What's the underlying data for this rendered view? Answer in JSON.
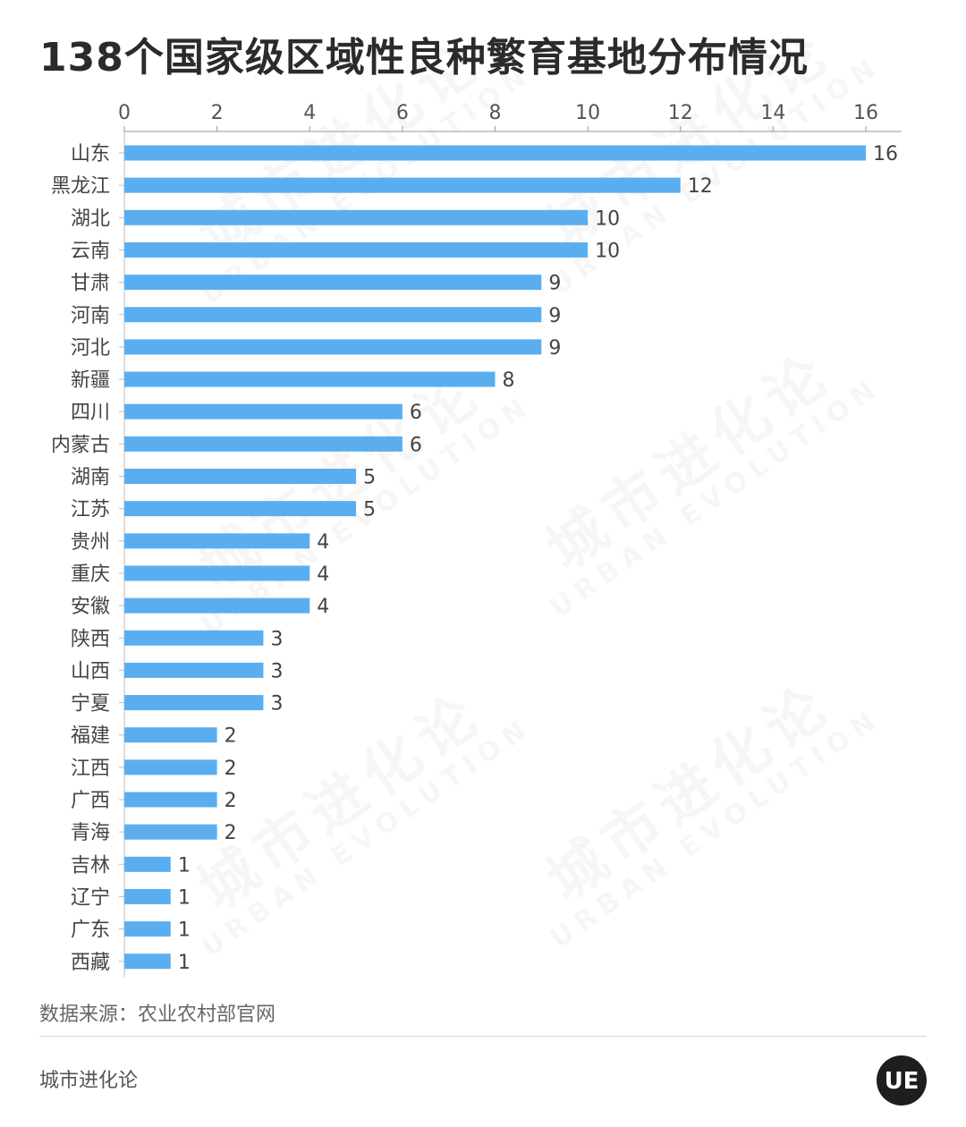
{
  "header": {
    "title": "138个国家级区域性良种繁育基地分布情况"
  },
  "chart_data": {
    "type": "bar",
    "orientation": "horizontal",
    "title": "138个国家级区域性良种繁育基地分布情况",
    "categories": [
      "山东",
      "黑龙江",
      "湖北",
      "云南",
      "甘肃",
      "河南",
      "河北",
      "新疆",
      "四川",
      "内蒙古",
      "湖南",
      "江苏",
      "贵州",
      "重庆",
      "安徽",
      "陕西",
      "山西",
      "宁夏",
      "福建",
      "江西",
      "广西",
      "青海",
      "吉林",
      "辽宁",
      "广东",
      "西藏"
    ],
    "values": [
      16,
      12,
      10,
      10,
      9,
      9,
      9,
      8,
      6,
      6,
      5,
      5,
      4,
      4,
      4,
      3,
      3,
      3,
      2,
      2,
      2,
      2,
      1,
      1,
      1,
      1
    ],
    "xlim": [
      0,
      16
    ],
    "x_ticks": [
      0,
      2,
      4,
      6,
      8,
      10,
      12,
      14,
      16
    ],
    "axis_position": "top",
    "grid": false,
    "data_labels": true,
    "bar_color": "#5aaef0"
  },
  "footer": {
    "source": "数据来源：农业农村部官网",
    "brand": "城市进化论",
    "logo_text": "UE"
  },
  "watermark": {
    "cn": "城市进化论",
    "en": "URBAN EVOLUTION"
  }
}
